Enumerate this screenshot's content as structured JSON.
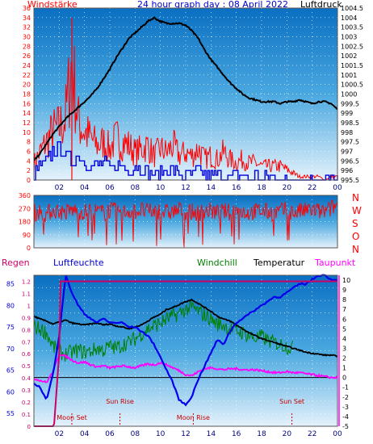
{
  "top_panel": {
    "title": "24 hour graph day : 08 April 2022",
    "left_label": "Windstärke",
    "right_label": "Luftdruck"
  },
  "middle_panel": {
    "direction_labels": [
      "N",
      "W",
      "S",
      "O",
      "N"
    ]
  },
  "bottom_panel": {
    "labels": {
      "rain": "Regen",
      "humidity": "Luftfeuchte",
      "windchill": "Windchill",
      "temperature": "Temperatur",
      "dewpoint": "Taupunkt"
    },
    "events": [
      {
        "label": "Moon Set",
        "hour": 3.0,
        "row": "low"
      },
      {
        "label": "Sun Rise",
        "hour": 6.8,
        "row": "high"
      },
      {
        "label": "Moon Rise",
        "hour": 12.6,
        "row": "low"
      },
      {
        "label": "Sun Set",
        "hour": 20.4,
        "row": "high"
      }
    ]
  },
  "colors": {
    "wind_avg": "#0000dd",
    "wind_gust": "#ff0000",
    "pressure": "#000000",
    "direction": "#ff0000",
    "humidity": "#0000ee",
    "windchill": "#008000",
    "temperature": "#000000",
    "dewpoint": "#ff00ff",
    "rain": "#cc0066"
  },
  "chart_data": [
    {
      "type": "line",
      "x_ticks": [
        "02",
        "04",
        "06",
        "08",
        "10",
        "12",
        "14",
        "16",
        "18",
        "20",
        "22",
        "00"
      ],
      "y_left_ticks": [
        0,
        2,
        4,
        6,
        8,
        10,
        12,
        14,
        16,
        18,
        20,
        22,
        24,
        26,
        28,
        30,
        32,
        34,
        36
      ],
      "y_left_range": [
        0,
        36
      ],
      "y_right_ticks": [
        "995.5",
        "996",
        "996.5",
        "997",
        "997.5",
        "998",
        "998.5",
        "999",
        "999.5",
        "1000",
        "1000.5",
        "1001",
        "1001.5",
        "1002",
        "1002.5",
        "1003",
        "1003.5",
        "1004",
        "1004.5"
      ],
      "y_right_range": [
        995.5,
        1004.5
      ],
      "series": [
        {
          "key": "pressure",
          "x": [
            0,
            0.5,
            1,
            1.5,
            2,
            2.5,
            3,
            3.5,
            4,
            4.5,
            5,
            5.5,
            6,
            6.5,
            7,
            7.5,
            8,
            8.5,
            9,
            9.5,
            10,
            10.5,
            11,
            11.5,
            12,
            12.5,
            13,
            13.5,
            14,
            14.5,
            15,
            15.5,
            16,
            16.5,
            17,
            17.5,
            18,
            18.5,
            19,
            19.5,
            20,
            20.5,
            21,
            21.5,
            22,
            22.5,
            23,
            23.5,
            24
          ],
          "values": [
            996.5,
            996.9,
            997.4,
            997.9,
            998.3,
            998.7,
            999.0,
            999.3,
            999.6,
            999.9,
            1000.3,
            1000.8,
            1001.3,
            1001.9,
            1002.4,
            1002.9,
            1003.2,
            1003.5,
            1003.8,
            1004.0,
            1003.8,
            1003.7,
            1003.7,
            1003.7,
            1003.6,
            1003.3,
            1002.9,
            1002.3,
            1001.8,
            1001.4,
            1001.0,
            1000.6,
            1000.3,
            1000.0,
            999.8,
            999.7,
            999.6,
            999.6,
            999.6,
            999.5,
            999.6,
            999.6,
            999.7,
            999.6,
            999.5,
            999.6,
            999.6,
            999.5,
            999.2
          ]
        },
        {
          "key": "wind_gust",
          "x": [
            0,
            0.5,
            1,
            1.5,
            2,
            2.5,
            3,
            3.5,
            4,
            4.5,
            5,
            5.5,
            6,
            6.5,
            7,
            7.5,
            8,
            8.5,
            9,
            9.5,
            10,
            10.5,
            11,
            11.5,
            12,
            12.5,
            13,
            13.5,
            14,
            14.5,
            15,
            15.5,
            16,
            16.5,
            17,
            17.5,
            18,
            18.5,
            19,
            19.5,
            20,
            20.5,
            21,
            21.5,
            22,
            22.5,
            23,
            23.5,
            24
          ],
          "values": [
            5,
            8,
            11,
            14,
            15,
            18,
            34,
            17,
            14,
            12,
            10,
            11,
            9,
            12,
            11,
            10,
            8,
            9,
            10,
            7,
            9,
            8,
            10,
            7,
            8,
            7,
            9,
            6,
            7,
            6,
            8,
            6,
            5,
            6,
            5,
            5,
            4,
            4,
            4,
            4,
            3,
            2,
            1,
            1,
            1,
            1,
            0,
            1,
            1
          ]
        },
        {
          "key": "wind_avg",
          "x": [
            0,
            0.5,
            1,
            1.5,
            2,
            2.5,
            3,
            3.5,
            4,
            4.5,
            5,
            5.5,
            6,
            6.5,
            7,
            7.5,
            8,
            8.5,
            9,
            9.5,
            10,
            10.5,
            11,
            11.5,
            12,
            12.5,
            13,
            13.5,
            14,
            14.5,
            15,
            15.5,
            16,
            16.5,
            17,
            17.5,
            18,
            18.5,
            19,
            19.5,
            20,
            20.5,
            21,
            21.5,
            22,
            22.5,
            23,
            23.5,
            24
          ],
          "values": [
            1,
            3,
            4,
            6,
            7,
            5,
            4,
            5,
            4,
            3,
            3,
            4,
            2,
            3,
            3,
            2,
            3,
            2,
            2,
            1,
            2,
            2,
            2,
            1,
            1,
            1,
            2,
            1,
            1,
            1,
            1,
            0,
            1,
            1,
            0,
            1,
            0,
            1,
            0,
            0,
            0,
            0,
            0,
            0,
            0,
            0,
            0,
            0,
            0
          ]
        }
      ]
    },
    {
      "type": "line",
      "y_ticks": [
        0,
        90,
        180,
        270,
        360
      ],
      "y_range": [
        0,
        360
      ],
      "series": [
        {
          "key": "direction",
          "x": [
            0,
            0.5,
            1,
            1.5,
            2,
            2.5,
            3,
            3.5,
            4,
            4.5,
            5,
            5.5,
            6,
            6.5,
            7,
            7.5,
            8,
            8.5,
            9,
            9.5,
            10,
            10.5,
            11,
            11.5,
            12,
            12.5,
            13,
            13.5,
            14,
            14.5,
            15,
            15.5,
            16,
            16.5,
            17,
            17.5,
            18,
            18.5,
            19,
            19.5,
            20,
            20.5,
            21,
            21.5,
            22,
            22.5,
            23,
            23.5,
            24
          ],
          "values": [
            240,
            250,
            230,
            260,
            250,
            240,
            260,
            250,
            245,
            255,
            250,
            240,
            260,
            250,
            240,
            255,
            250,
            260,
            245,
            250,
            255,
            240,
            250,
            260,
            250,
            245,
            240,
            250,
            255,
            240,
            250,
            245,
            260,
            250,
            240,
            250,
            255,
            245,
            240,
            250,
            260,
            240,
            250,
            255,
            260,
            250,
            245,
            270,
            300
          ]
        }
      ]
    },
    {
      "type": "line",
      "y_humidity_ticks": [
        55,
        60,
        65,
        70,
        75,
        80,
        85
      ],
      "y_humidity_range": [
        52,
        87
      ],
      "y_rain_ticks": [
        "0",
        "0.1",
        "0.2",
        "0.3",
        "0.4",
        "0.5",
        "0.6",
        "0.7",
        "0.8",
        "0.9",
        "1",
        "1.1",
        "1.2"
      ],
      "y_rain_range": [
        0,
        1.25
      ],
      "y_temp_ticks": [
        -5,
        -4,
        -3,
        -2,
        -1,
        0,
        1,
        2,
        3,
        4,
        5,
        6,
        7,
        8,
        9,
        10
      ],
      "y_temp_range": [
        -5,
        10.5
      ],
      "series": [
        {
          "key": "humidity",
          "x": [
            0,
            0.5,
            1,
            1.5,
            2,
            2.5,
            3,
            3.5,
            4,
            4.5,
            5,
            5.5,
            6,
            6.5,
            7,
            7.5,
            8,
            8.5,
            9,
            9.5,
            10,
            10.5,
            11,
            11.5,
            12,
            12.5,
            13,
            13.5,
            14,
            14.5,
            15,
            15.5,
            16,
            16.5,
            17,
            17.5,
            18,
            18.5,
            19,
            19.5,
            20,
            20.5,
            21,
            21.5,
            22,
            22.5,
            23,
            23.5,
            24
          ],
          "values": [
            62,
            61,
            58,
            64,
            73,
            87,
            83,
            80,
            78,
            77,
            76,
            77,
            76,
            76,
            76,
            75,
            75,
            74,
            73,
            71,
            68,
            65,
            62,
            58,
            57,
            59,
            63,
            66,
            69,
            72,
            71,
            74,
            76,
            77,
            78,
            79,
            80,
            81,
            82,
            82,
            83,
            84,
            85,
            85,
            86,
            87,
            87,
            86,
            86
          ]
        },
        {
          "key": "temperature",
          "x": [
            0,
            0.5,
            1,
            1.5,
            2,
            2.5,
            3,
            3.5,
            4,
            4.5,
            5,
            5.5,
            6,
            6.5,
            7,
            7.5,
            8,
            8.5,
            9,
            9.5,
            10,
            10.5,
            11,
            11.5,
            12,
            12.5,
            13,
            13.5,
            14,
            14.5,
            15,
            15.5,
            16,
            16.5,
            17,
            17.5,
            18,
            18.5,
            19,
            19.5,
            20,
            20.5,
            21,
            21.5,
            22,
            22.5,
            23,
            23.5,
            24
          ],
          "values": [
            6.3,
            6.0,
            5.8,
            5.5,
            5.7,
            5.9,
            5.6,
            5.5,
            5.4,
            5.5,
            5.6,
            5.4,
            5.5,
            5.3,
            5.2,
            5.0,
            5.2,
            5.4,
            5.8,
            6.2,
            6.5,
            7.0,
            7.2,
            7.5,
            7.8,
            8.0,
            7.6,
            7.2,
            6.8,
            6.3,
            6.0,
            5.8,
            5.4,
            5.0,
            4.6,
            4.3,
            4.0,
            3.8,
            3.6,
            3.4,
            3.2,
            3.0,
            2.8,
            2.6,
            2.5,
            2.4,
            2.3,
            2.3,
            2.2
          ]
        },
        {
          "key": "windchill",
          "x": [
            0,
            0.5,
            1,
            1.5,
            2,
            2.5,
            3,
            3.5,
            4,
            4.5,
            5,
            5.5,
            6,
            6.5,
            7,
            7.5,
            8,
            8.5,
            9,
            9.5,
            10,
            10.5,
            11,
            11.5,
            12,
            12.5,
            13,
            13.5,
            14,
            14.5,
            15,
            15.5,
            16,
            16.5,
            17,
            17.5,
            18,
            18.5,
            19,
            19.5,
            20,
            20.5
          ],
          "values": [
            5.2,
            5.0,
            4.6,
            3.2,
            2.6,
            2.4,
            2.6,
            2.8,
            2.6,
            2.7,
            3.0,
            2.8,
            3.2,
            3.0,
            3.4,
            3.6,
            4.0,
            4.5,
            5.0,
            5.3,
            5.6,
            6.0,
            6.3,
            6.6,
            7.0,
            7.2,
            6.8,
            6.4,
            6.0,
            5.5,
            5.4,
            5.0,
            4.8,
            4.6,
            4.3,
            4.0,
            4.2,
            3.8,
            3.6,
            3.4,
            3.2,
            3.0
          ]
        },
        {
          "key": "dewpoint",
          "x": [
            0,
            0.5,
            1,
            1.5,
            2,
            2.5,
            3,
            3.5,
            4,
            4.5,
            5,
            5.5,
            6,
            6.5,
            7,
            7.5,
            8,
            8.5,
            9,
            9.5,
            10,
            10.5,
            11,
            11.5,
            12,
            12.5,
            13,
            13.5,
            14,
            14.5,
            15,
            15.5,
            16,
            16.5,
            17,
            17.5,
            18,
            18.5,
            19,
            19.5,
            20,
            20.5,
            21,
            21.5,
            22,
            22.5,
            23,
            23.5,
            24
          ],
          "values": [
            -0.1,
            -0.3,
            -0.5,
            0.6,
            2.4,
            2.2,
            1.8,
            1.5,
            1.6,
            1.3,
            1.1,
            1.2,
            1.0,
            1.1,
            1.2,
            1.1,
            1.0,
            1.2,
            1.4,
            1.3,
            1.5,
            1.3,
            1.0,
            0.7,
            0.3,
            0.2,
            0.6,
            0.9,
            1.0,
            0.9,
            0.8,
            0.9,
            0.9,
            0.8,
            0.8,
            0.8,
            0.7,
            0.6,
            0.5,
            0.5,
            0.6,
            0.5,
            0.5,
            0.4,
            0.3,
            0.2,
            0.1,
            0.0,
            0.0
          ]
        },
        {
          "key": "rain",
          "x": [
            0,
            1.5,
            1.6,
            2.0,
            2.1,
            24
          ],
          "values": [
            0,
            0,
            0.02,
            0.6,
            1.2,
            1.2
          ]
        }
      ]
    }
  ]
}
